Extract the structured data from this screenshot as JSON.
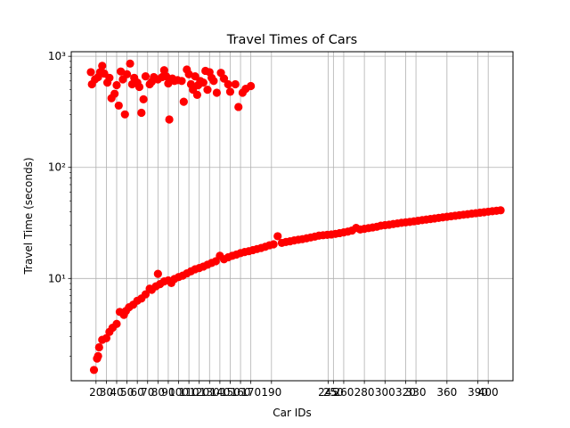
{
  "chart_data": {
    "type": "scatter",
    "title": "Travel Times of Cars",
    "xlabel": "Car IDs",
    "ylabel": "Travel Time (seconds)",
    "y_scale": "log",
    "xlim": [
      -4,
      424
    ],
    "ylim": [
      1.2,
      1100
    ],
    "grid": true,
    "marker_color": "#ff0000",
    "x_ticks": [
      20,
      30,
      40,
      50,
      60,
      70,
      80,
      90,
      100,
      110,
      120,
      130,
      140,
      150,
      160,
      170,
      190,
      245,
      250,
      260,
      280,
      300,
      320,
      330,
      360,
      390,
      400
    ],
    "x_tick_labels": [
      "20",
      "30",
      "40",
      "50",
      "60",
      "70",
      "80",
      "90",
      "100",
      "110",
      "120",
      "130",
      "140",
      "150",
      "160",
      "170",
      "190",
      "245",
      "250",
      "260",
      "280",
      "300",
      "320",
      "330",
      "360",
      "390",
      "400"
    ],
    "y_ticks": [
      10,
      100,
      1000
    ],
    "y_tick_labels": [
      "10¹",
      "10²",
      "10³"
    ],
    "series": [
      {
        "points": [
          [
            18,
            1.5
          ],
          [
            21,
            1.9
          ],
          [
            22,
            2.0
          ],
          [
            23,
            2.4
          ],
          [
            26,
            2.8
          ],
          [
            30,
            2.9
          ],
          [
            33,
            3.3
          ],
          [
            36,
            3.6
          ],
          [
            40,
            3.9
          ],
          [
            43,
            5.0
          ],
          [
            47,
            4.7
          ],
          [
            49,
            5.1
          ],
          [
            52,
            5.5
          ],
          [
            56,
            5.8
          ],
          [
            60,
            6.3
          ],
          [
            64,
            6.6
          ],
          [
            68,
            7.2
          ],
          [
            72,
            8.1
          ],
          [
            74,
            7.9
          ],
          [
            78,
            8.5
          ],
          [
            80,
            11.0
          ],
          [
            82,
            8.9
          ],
          [
            86,
            9.4
          ],
          [
            90,
            9.6
          ],
          [
            93,
            9.1
          ],
          [
            96,
            9.9
          ],
          [
            100,
            10.3
          ],
          [
            104,
            10.6
          ],
          [
            108,
            11.1
          ],
          [
            112,
            11.6
          ],
          [
            116,
            12.1
          ],
          [
            120,
            12.4
          ],
          [
            124,
            12.8
          ],
          [
            128,
            13.3
          ],
          [
            132,
            13.8
          ],
          [
            136,
            14.3
          ],
          [
            140,
            16.0
          ],
          [
            144,
            14.9
          ],
          [
            148,
            15.5
          ],
          [
            152,
            16.0
          ],
          [
            156,
            16.4
          ],
          [
            160,
            16.9
          ],
          [
            164,
            17.3
          ],
          [
            168,
            17.6
          ],
          [
            172,
            18.0
          ],
          [
            176,
            18.4
          ],
          [
            180,
            18.8
          ],
          [
            184,
            19.3
          ],
          [
            188,
            19.9
          ],
          [
            192,
            20.3
          ],
          [
            196,
            24.0
          ],
          [
            200,
            20.9
          ],
          [
            204,
            21.3
          ],
          [
            208,
            21.6
          ],
          [
            212,
            22.0
          ],
          [
            216,
            22.3
          ],
          [
            220,
            22.6
          ],
          [
            224,
            23.0
          ],
          [
            228,
            23.4
          ],
          [
            232,
            23.8
          ],
          [
            236,
            24.3
          ],
          [
            240,
            24.5
          ],
          [
            244,
            24.7
          ],
          [
            248,
            24.9
          ],
          [
            252,
            25.2
          ],
          [
            256,
            25.6
          ],
          [
            260,
            26.0
          ],
          [
            264,
            26.4
          ],
          [
            268,
            27.0
          ],
          [
            272,
            28.5
          ],
          [
            276,
            27.6
          ],
          [
            280,
            28.0
          ],
          [
            284,
            28.4
          ],
          [
            288,
            28.8
          ],
          [
            292,
            29.2
          ],
          [
            296,
            29.9
          ],
          [
            300,
            30.2
          ],
          [
            304,
            30.5
          ],
          [
            308,
            30.9
          ],
          [
            312,
            31.3
          ],
          [
            316,
            31.7
          ],
          [
            320,
            32.0
          ],
          [
            324,
            32.3
          ],
          [
            328,
            32.7
          ],
          [
            332,
            33.1
          ],
          [
            336,
            33.5
          ],
          [
            340,
            33.9
          ],
          [
            344,
            34.3
          ],
          [
            348,
            34.7
          ],
          [
            352,
            35.1
          ],
          [
            356,
            35.5
          ],
          [
            360,
            35.9
          ],
          [
            364,
            36.3
          ],
          [
            368,
            36.7
          ],
          [
            372,
            37.1
          ],
          [
            376,
            37.5
          ],
          [
            380,
            37.9
          ],
          [
            384,
            38.3
          ],
          [
            388,
            38.7
          ],
          [
            392,
            39.1
          ],
          [
            396,
            39.5
          ],
          [
            400,
            39.9
          ],
          [
            404,
            40.3
          ],
          [
            408,
            40.7
          ],
          [
            412,
            41.1
          ],
          [
            15,
            720
          ],
          [
            16,
            560
          ],
          [
            19,
            620
          ],
          [
            22,
            650
          ],
          [
            24,
            720
          ],
          [
            26,
            820
          ],
          [
            28,
            700
          ],
          [
            31,
            580
          ],
          [
            33,
            640
          ],
          [
            35,
            420
          ],
          [
            38,
            460
          ],
          [
            40,
            550
          ],
          [
            42,
            360
          ],
          [
            44,
            730
          ],
          [
            46,
            620
          ],
          [
            48,
            300
          ],
          [
            50,
            690
          ],
          [
            53,
            860
          ],
          [
            55,
            560
          ],
          [
            57,
            640
          ],
          [
            60,
            580
          ],
          [
            62,
            530
          ],
          [
            64,
            310
          ],
          [
            66,
            410
          ],
          [
            68,
            660
          ],
          [
            72,
            560
          ],
          [
            74,
            590
          ],
          [
            76,
            650
          ],
          [
            80,
            620
          ],
          [
            84,
            650
          ],
          [
            86,
            750
          ],
          [
            88,
            660
          ],
          [
            90,
            570
          ],
          [
            91,
            270
          ],
          [
            94,
            630
          ],
          [
            96,
            600
          ],
          [
            99,
            610
          ],
          [
            103,
            600
          ],
          [
            105,
            390
          ],
          [
            108,
            760
          ],
          [
            110,
            690
          ],
          [
            112,
            560
          ],
          [
            114,
            500
          ],
          [
            116,
            660
          ],
          [
            118,
            450
          ],
          [
            119,
            550
          ],
          [
            121,
            600
          ],
          [
            124,
            580
          ],
          [
            126,
            740
          ],
          [
            128,
            500
          ],
          [
            130,
            720
          ],
          [
            132,
            640
          ],
          [
            134,
            600
          ],
          [
            137,
            470
          ],
          [
            141,
            710
          ],
          [
            144,
            630
          ],
          [
            148,
            560
          ],
          [
            150,
            480
          ],
          [
            155,
            560
          ],
          [
            158,
            350
          ],
          [
            162,
            470
          ],
          [
            165,
            510
          ],
          [
            170,
            540
          ]
        ]
      }
    ]
  }
}
